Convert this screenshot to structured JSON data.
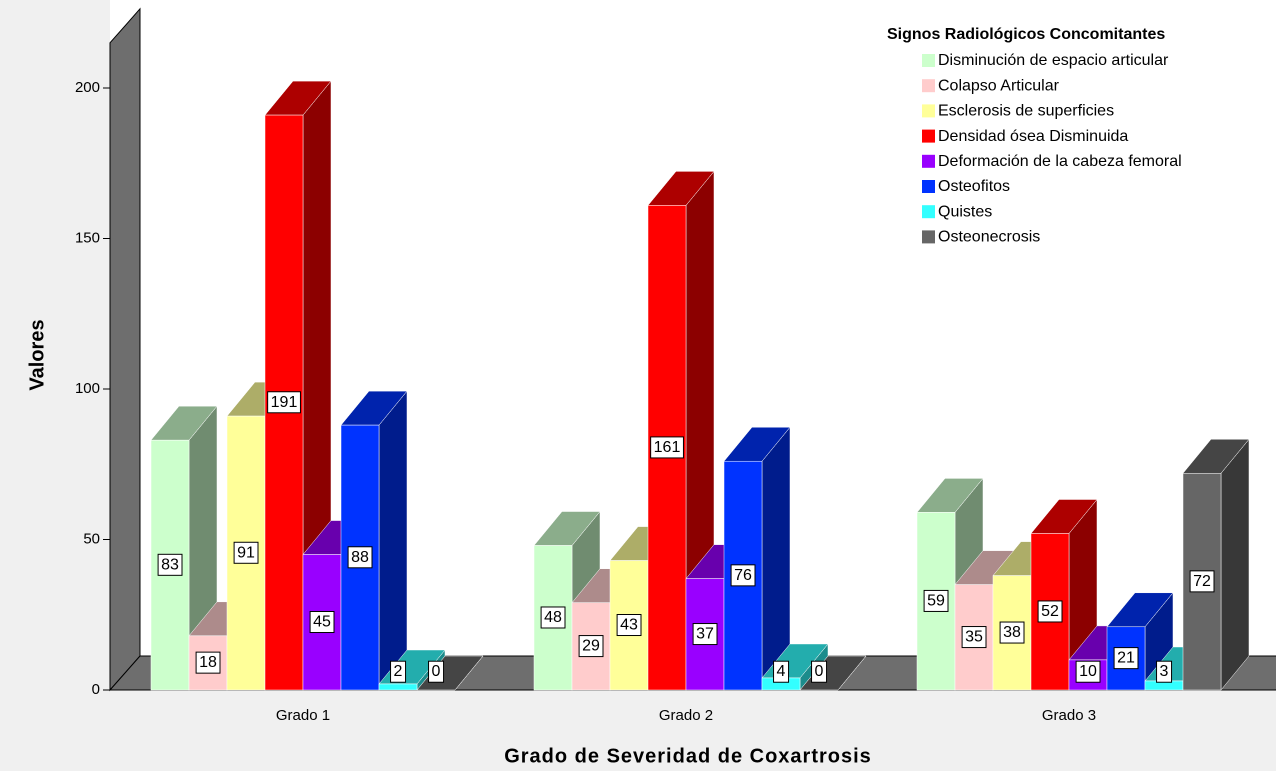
{
  "chart_data": {
    "type": "bar3d",
    "x_label": "Grado de Severidad de Coxartrosis",
    "y_label": "Valores",
    "legend_title": "Signos Radiológicos Concomitantes",
    "legend_position": "top-right",
    "categories": [
      "Grado 1",
      "Grado 2",
      "Grado 3"
    ],
    "series": [
      {
        "name": "Disminución de espacio articular",
        "color": "#ccffcc",
        "values": [
          83,
          48,
          59
        ]
      },
      {
        "name": "Colapso Articular",
        "color": "#ffcccc",
        "values": [
          18,
          29,
          35
        ]
      },
      {
        "name": "Esclerosis de superficies",
        "color": "#ffff99",
        "values": [
          91,
          43,
          38
        ]
      },
      {
        "name": "Densidad ósea Disminuida",
        "color": "#ff0000",
        "values": [
          191,
          161,
          52
        ]
      },
      {
        "name": "Deformación de la cabeza femoral",
        "color": "#9900ff",
        "values": [
          45,
          37,
          10
        ]
      },
      {
        "name": "Osteofitos",
        "color": "#0033ff",
        "values": [
          88,
          76,
          21
        ]
      },
      {
        "name": "Quistes",
        "color": "#33ffff",
        "values": [
          2,
          4,
          3
        ]
      },
      {
        "name": "Osteonecrosis",
        "color": "#666666",
        "values": [
          0,
          0,
          72
        ]
      }
    ],
    "ylim": [
      0,
      215
    ],
    "yticks": [
      0,
      50,
      100,
      150,
      200
    ]
  }
}
